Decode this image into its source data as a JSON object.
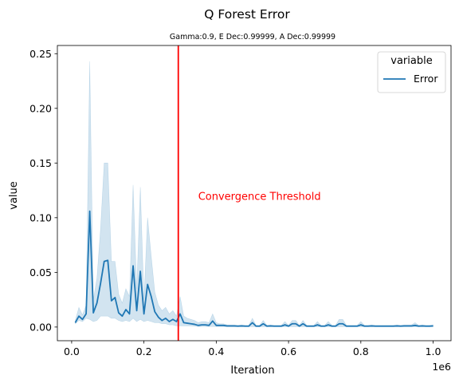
{
  "chart_data": {
    "type": "line",
    "title": "Q Forest Error",
    "subtitle": "Gamma:0.9, E Dec:0.99999, A Dec:0.99999",
    "xlabel": "Iteration",
    "ylabel": "value",
    "x_offset_label": "1e6",
    "xlim": [
      -0.0395,
      1.0495
    ],
    "ylim": [
      -0.0125,
      0.2575
    ],
    "x_ticks": [
      0.0,
      0.2,
      0.4,
      0.6,
      0.8,
      1.0
    ],
    "x_tick_labels": [
      "0.0",
      "0.2",
      "0.4",
      "0.6",
      "0.8",
      "1.0"
    ],
    "y_ticks": [
      0.0,
      0.05,
      0.1,
      0.15,
      0.2,
      0.25
    ],
    "y_tick_labels": [
      "0.00",
      "0.05",
      "0.10",
      "0.15",
      "0.20",
      "0.25"
    ],
    "grid": false,
    "legend": {
      "title": "variable",
      "position": "top-right",
      "entries": [
        "Error"
      ]
    },
    "colors": {
      "line": "#1f77b4",
      "band": "#1f77b4",
      "threshold": "#ff0000"
    },
    "threshold": {
      "x": 0.295,
      "label": "Convergence Threshold",
      "label_x": 0.35,
      "label_y": 0.12
    },
    "series": [
      {
        "name": "Error",
        "x": [
          0.01,
          0.02,
          0.03,
          0.04,
          0.05,
          0.06,
          0.07,
          0.08,
          0.09,
          0.1,
          0.11,
          0.12,
          0.13,
          0.14,
          0.15,
          0.16,
          0.17,
          0.18,
          0.19,
          0.2,
          0.21,
          0.22,
          0.23,
          0.24,
          0.25,
          0.26,
          0.27,
          0.28,
          0.29,
          0.3,
          0.31,
          0.32,
          0.33,
          0.34,
          0.35,
          0.36,
          0.37,
          0.38,
          0.39,
          0.4,
          0.41,
          0.42,
          0.43,
          0.44,
          0.45,
          0.46,
          0.47,
          0.48,
          0.49,
          0.5,
          0.51,
          0.52,
          0.53,
          0.54,
          0.55,
          0.56,
          0.57,
          0.58,
          0.59,
          0.6,
          0.61,
          0.62,
          0.63,
          0.64,
          0.65,
          0.66,
          0.67,
          0.68,
          0.69,
          0.7,
          0.71,
          0.72,
          0.73,
          0.74,
          0.75,
          0.76,
          0.77,
          0.78,
          0.79,
          0.8,
          0.81,
          0.82,
          0.83,
          0.84,
          0.85,
          0.86,
          0.87,
          0.88,
          0.89,
          0.9,
          0.91,
          0.92,
          0.93,
          0.94,
          0.95,
          0.96,
          0.97,
          0.98,
          0.99,
          1.0
        ],
        "values": [
          0.004,
          0.01,
          0.007,
          0.012,
          0.106,
          0.013,
          0.022,
          0.04,
          0.06,
          0.061,
          0.024,
          0.027,
          0.013,
          0.01,
          0.016,
          0.012,
          0.056,
          0.015,
          0.051,
          0.012,
          0.039,
          0.028,
          0.014,
          0.009,
          0.006,
          0.008,
          0.005,
          0.007,
          0.005,
          0.012,
          0.004,
          0.0035,
          0.003,
          0.0025,
          0.0015,
          0.002,
          0.002,
          0.0015,
          0.0055,
          0.0015,
          0.0015,
          0.0015,
          0.001,
          0.001,
          0.001,
          0.0008,
          0.001,
          0.0008,
          0.0008,
          0.004,
          0.0008,
          0.0008,
          0.003,
          0.0008,
          0.001,
          0.0008,
          0.0008,
          0.0008,
          0.002,
          0.0008,
          0.003,
          0.003,
          0.0008,
          0.003,
          0.0008,
          0.0008,
          0.0008,
          0.002,
          0.0008,
          0.0008,
          0.002,
          0.0008,
          0.0008,
          0.003,
          0.003,
          0.0008,
          0.0008,
          0.0008,
          0.0008,
          0.002,
          0.0008,
          0.0008,
          0.001,
          0.0008,
          0.0008,
          0.0008,
          0.0008,
          0.0008,
          0.0008,
          0.001,
          0.0008,
          0.001,
          0.001,
          0.001,
          0.0015,
          0.0008,
          0.001,
          0.0008,
          0.0008,
          0.001
        ],
        "lower": [
          0.003,
          0.006,
          0.005,
          0.008,
          0.007,
          0.005,
          0.006,
          0.01,
          0.01,
          0.01,
          0.008,
          0.008,
          0.006,
          0.005,
          0.006,
          0.005,
          0.008,
          0.005,
          0.007,
          0.005,
          0.006,
          0.005,
          0.004,
          0.004,
          0.003,
          0.003,
          0.002,
          0.002,
          0.001,
          0.001,
          0.001,
          0.001,
          0.001,
          0.0008,
          0.0005,
          0.0005,
          0.0005,
          0.0005,
          0.0005,
          0.0005,
          0.0005,
          0.0005,
          0.0003,
          0.0003,
          0.0003,
          0.0003,
          0.0003,
          0.0003,
          0.0003,
          0.0003,
          0.0003,
          0.0003,
          0.0003,
          0.0003,
          0.0003,
          0.0003,
          0.0003,
          0.0003,
          0.0003,
          0.0003,
          0.0003,
          0.0003,
          0.0003,
          0.0003,
          0.0003,
          0.0003,
          0.0003,
          0.0003,
          0.0003,
          0.0003,
          0.0003,
          0.0003,
          0.0003,
          0.0003,
          0.0003,
          0.0003,
          0.0003,
          0.0003,
          0.0003,
          0.0003,
          0.0003,
          0.0003,
          0.0003,
          0.0003,
          0.0003,
          0.0003,
          0.0003,
          0.0003,
          0.0003,
          0.0003,
          0.0003,
          0.0003,
          0.0003,
          0.0003,
          0.0003,
          0.0003,
          0.0003,
          0.0003,
          0.0003,
          0.0003
        ],
        "upper": [
          0.006,
          0.018,
          0.011,
          0.02,
          0.243,
          0.025,
          0.045,
          0.09,
          0.15,
          0.15,
          0.06,
          0.06,
          0.03,
          0.022,
          0.035,
          0.028,
          0.13,
          0.035,
          0.128,
          0.025,
          0.1,
          0.065,
          0.032,
          0.02,
          0.015,
          0.018,
          0.012,
          0.015,
          0.01,
          0.028,
          0.01,
          0.008,
          0.007,
          0.006,
          0.004,
          0.005,
          0.005,
          0.004,
          0.012,
          0.004,
          0.003,
          0.003,
          0.002,
          0.002,
          0.002,
          0.0015,
          0.002,
          0.0015,
          0.0015,
          0.008,
          0.0015,
          0.0015,
          0.006,
          0.0015,
          0.002,
          0.0015,
          0.0015,
          0.0015,
          0.005,
          0.0015,
          0.006,
          0.006,
          0.0015,
          0.006,
          0.0015,
          0.0015,
          0.0015,
          0.005,
          0.0015,
          0.0015,
          0.005,
          0.0015,
          0.0015,
          0.007,
          0.007,
          0.0015,
          0.0015,
          0.0015,
          0.0015,
          0.005,
          0.0015,
          0.0015,
          0.002,
          0.0015,
          0.0015,
          0.0015,
          0.0015,
          0.0015,
          0.0015,
          0.002,
          0.0015,
          0.002,
          0.002,
          0.002,
          0.004,
          0.0015,
          0.002,
          0.0015,
          0.0015,
          0.002
        ]
      }
    ]
  }
}
